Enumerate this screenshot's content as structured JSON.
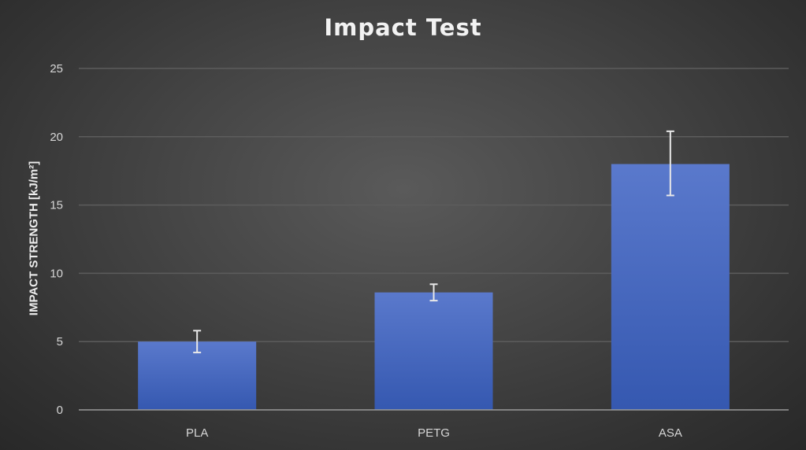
{
  "chart_data": {
    "type": "bar",
    "title": "Impact Test",
    "xlabel": "",
    "ylabel": "IMPACT STRENGTH [kJ/m²]",
    "categories": [
      "PLA",
      "PETG",
      "ASA"
    ],
    "values": [
      5.0,
      8.6,
      18.0
    ],
    "error_bars": [
      {
        "low": 4.2,
        "high": 5.8
      },
      {
        "low": 8.0,
        "high": 9.2
      },
      {
        "low": 15.7,
        "high": 20.4
      }
    ],
    "ylim": [
      0,
      25
    ],
    "yticks": [
      0,
      5,
      10,
      15,
      20,
      25
    ],
    "grid": true,
    "legend": "none",
    "colors": {
      "bar_top": "#5a79cc",
      "bar_bottom": "#3558b0",
      "error_bar": "#e8e8e8",
      "gridline": "#5c5c5c",
      "axis_line": "#9a9a9a"
    }
  }
}
